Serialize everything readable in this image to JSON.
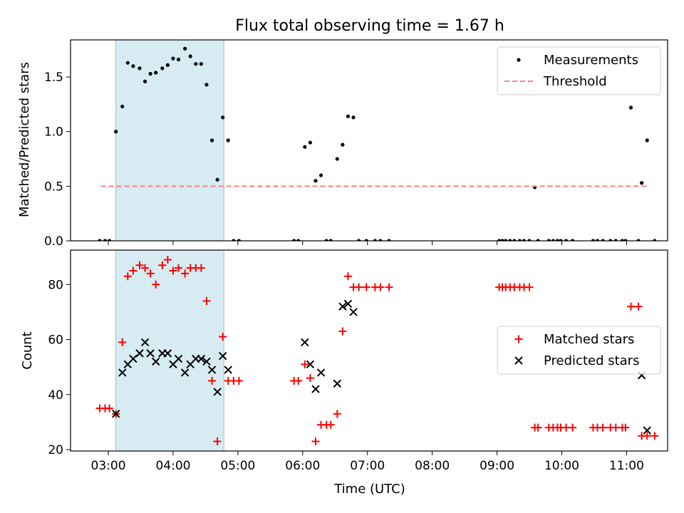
{
  "title": "Flux total observing time = 1.67 h",
  "colors": {
    "measurement": "#000000",
    "threshold": "#ff7f7f",
    "matched": "#ff0000",
    "predicted": "#000000",
    "shade": "#add8e6"
  },
  "chart_data": [
    {
      "type": "scatter",
      "title": "Flux total observing time = 1.67 h",
      "xlabel": "",
      "ylabel": "Matched/Predicted stars",
      "xlim": [
        "02:25",
        "11:38"
      ],
      "ylim": [
        0,
        1.84
      ],
      "xticks": [
        "03:00",
        "04:00",
        "05:00",
        "06:00",
        "07:00",
        "08:00",
        "09:00",
        "10:00",
        "11:00"
      ],
      "yticks": [
        "0.0",
        "0.5",
        "1.0",
        "1.5"
      ],
      "grid": false,
      "legend": "top-right",
      "shaded_interval": [
        "03:07",
        "04:47"
      ],
      "series": [
        {
          "name": "Measurements",
          "style": "dot",
          "points": [
            [
              "02:52",
              0
            ],
            [
              "02:57",
              0
            ],
            [
              "03:01",
              0
            ],
            [
              "03:07",
              1.0
            ],
            [
              "03:13",
              1.23
            ],
            [
              "03:18",
              1.63
            ],
            [
              "03:23",
              1.6
            ],
            [
              "03:29",
              1.58
            ],
            [
              "03:34",
              1.46
            ],
            [
              "03:39",
              1.53
            ],
            [
              "03:44",
              1.54
            ],
            [
              "03:50",
              1.58
            ],
            [
              "03:55",
              1.61
            ],
            [
              "04:00",
              1.67
            ],
            [
              "04:05",
              1.66
            ],
            [
              "04:11",
              1.76
            ],
            [
              "04:16",
              1.69
            ],
            [
              "04:21",
              1.62
            ],
            [
              "04:26",
              1.62
            ],
            [
              "04:31",
              1.43
            ],
            [
              "04:36",
              0.92
            ],
            [
              "04:41",
              0.56
            ],
            [
              "04:46",
              1.13
            ],
            [
              "04:51",
              0.92
            ],
            [
              "04:56",
              0
            ],
            [
              "05:01",
              0
            ],
            [
              "05:52",
              0
            ],
            [
              "05:56",
              0
            ],
            [
              "06:02",
              0.86
            ],
            [
              "06:07",
              0.9
            ],
            [
              "06:12",
              0.55
            ],
            [
              "06:17",
              0.6
            ],
            [
              "06:22",
              0
            ],
            [
              "06:26",
              0
            ],
            [
              "06:32",
              0.75
            ],
            [
              "06:37",
              0.88
            ],
            [
              "06:42",
              1.14
            ],
            [
              "06:47",
              1.13
            ],
            [
              "06:52",
              0
            ],
            [
              "06:59",
              0
            ],
            [
              "07:07",
              0
            ],
            [
              "07:12",
              0
            ],
            [
              "07:20",
              0
            ],
            [
              "09:02",
              0
            ],
            [
              "09:05",
              0
            ],
            [
              "09:08",
              0
            ],
            [
              "09:12",
              0
            ],
            [
              "09:16",
              0
            ],
            [
              "09:21",
              0
            ],
            [
              "09:25",
              0
            ],
            [
              "09:30",
              0
            ],
            [
              "09:35",
              0.49
            ],
            [
              "09:38",
              0
            ],
            [
              "09:48",
              0
            ],
            [
              "09:52",
              0
            ],
            [
              "09:56",
              0
            ],
            [
              "09:59",
              0
            ],
            [
              "10:04",
              0
            ],
            [
              "10:10",
              0
            ],
            [
              "10:29",
              0
            ],
            [
              "10:33",
              0
            ],
            [
              "10:38",
              0
            ],
            [
              "10:45",
              0
            ],
            [
              "10:50",
              0
            ],
            [
              "10:56",
              0
            ],
            [
              "10:59",
              0
            ],
            [
              "11:04",
              1.22
            ],
            [
              "11:11",
              0
            ],
            [
              "11:14",
              0.53
            ],
            [
              "11:19",
              0.92
            ],
            [
              "11:26",
              0
            ]
          ]
        },
        {
          "name": "Threshold",
          "style": "dashed-line",
          "points": [
            [
              "02:53",
              0.5
            ],
            [
              "11:20",
              0.5
            ]
          ]
        }
      ]
    },
    {
      "type": "scatter",
      "title": "",
      "xlabel": "Time (UTC)",
      "ylabel": "Count",
      "xlim": [
        "02:25",
        "11:38"
      ],
      "ylim": [
        19.5,
        92.5
      ],
      "xticks": [
        "03:00",
        "04:00",
        "05:00",
        "06:00",
        "07:00",
        "08:00",
        "09:00",
        "10:00",
        "11:00"
      ],
      "yticks": [
        "20",
        "40",
        "60",
        "80"
      ],
      "grid": false,
      "legend": "center-right",
      "shaded_interval": [
        "03:07",
        "04:47"
      ],
      "series": [
        {
          "name": "Matched stars",
          "style": "plus",
          "points": [
            [
              "02:52",
              35
            ],
            [
              "02:57",
              35
            ],
            [
              "03:01",
              35
            ],
            [
              "03:07",
              33
            ],
            [
              "03:13",
              59
            ],
            [
              "03:18",
              83
            ],
            [
              "03:23",
              85
            ],
            [
              "03:29",
              87
            ],
            [
              "03:34",
              86
            ],
            [
              "03:39",
              84
            ],
            [
              "03:44",
              80
            ],
            [
              "03:50",
              87
            ],
            [
              "03:55",
              89
            ],
            [
              "04:00",
              85
            ],
            [
              "04:05",
              86
            ],
            [
              "04:11",
              84
            ],
            [
              "04:16",
              86
            ],
            [
              "04:21",
              86
            ],
            [
              "04:26",
              86
            ],
            [
              "04:31",
              74
            ],
            [
              "04:36",
              45
            ],
            [
              "04:41",
              23
            ],
            [
              "04:46",
              61
            ],
            [
              "04:51",
              45
            ],
            [
              "04:56",
              45
            ],
            [
              "05:01",
              45
            ],
            [
              "05:52",
              45
            ],
            [
              "05:56",
              45
            ],
            [
              "06:02",
              51
            ],
            [
              "06:07",
              46
            ],
            [
              "06:12",
              23
            ],
            [
              "06:17",
              29
            ],
            [
              "06:22",
              29
            ],
            [
              "06:26",
              29
            ],
            [
              "06:32",
              33
            ],
            [
              "06:37",
              63
            ],
            [
              "06:42",
              83
            ],
            [
              "06:47",
              79
            ],
            [
              "06:52",
              79
            ],
            [
              "06:59",
              79
            ],
            [
              "07:07",
              79
            ],
            [
              "07:12",
              79
            ],
            [
              "07:20",
              79
            ],
            [
              "09:02",
              79
            ],
            [
              "09:05",
              79
            ],
            [
              "09:08",
              79
            ],
            [
              "09:12",
              79
            ],
            [
              "09:16",
              79
            ],
            [
              "09:21",
              79
            ],
            [
              "09:25",
              79
            ],
            [
              "09:30",
              79
            ],
            [
              "09:35",
              28
            ],
            [
              "09:38",
              28
            ],
            [
              "09:48",
              28
            ],
            [
              "09:52",
              28
            ],
            [
              "09:56",
              28
            ],
            [
              "09:59",
              28
            ],
            [
              "10:04",
              28
            ],
            [
              "10:10",
              28
            ],
            [
              "10:29",
              28
            ],
            [
              "10:33",
              28
            ],
            [
              "10:38",
              28
            ],
            [
              "10:45",
              28
            ],
            [
              "10:50",
              28
            ],
            [
              "10:56",
              28
            ],
            [
              "10:59",
              28
            ],
            [
              "11:04",
              72
            ],
            [
              "11:11",
              72
            ],
            [
              "11:14",
              25
            ],
            [
              "11:19",
              25
            ],
            [
              "11:26",
              25
            ]
          ]
        },
        {
          "name": "Predicted stars",
          "style": "x",
          "points": [
            [
              "03:07",
              33
            ],
            [
              "03:13",
              48
            ],
            [
              "03:18",
              51
            ],
            [
              "03:23",
              53
            ],
            [
              "03:29",
              55
            ],
            [
              "03:34",
              59
            ],
            [
              "03:39",
              55
            ],
            [
              "03:44",
              52
            ],
            [
              "03:50",
              55
            ],
            [
              "03:55",
              55
            ],
            [
              "04:00",
              51
            ],
            [
              "04:05",
              53
            ],
            [
              "04:11",
              48
            ],
            [
              "04:16",
              51
            ],
            [
              "04:21",
              53
            ],
            [
              "04:26",
              53
            ],
            [
              "04:31",
              52
            ],
            [
              "04:36",
              49
            ],
            [
              "04:41",
              41
            ],
            [
              "04:46",
              54
            ],
            [
              "04:51",
              49
            ],
            [
              "06:02",
              59
            ],
            [
              "06:07",
              51
            ],
            [
              "06:12",
              42
            ],
            [
              "06:17",
              48
            ],
            [
              "06:32",
              44
            ],
            [
              "06:37",
              72
            ],
            [
              "06:42",
              73
            ],
            [
              "06:47",
              70
            ],
            [
              "11:14",
              47
            ],
            [
              "11:19",
              27
            ]
          ]
        }
      ]
    }
  ]
}
